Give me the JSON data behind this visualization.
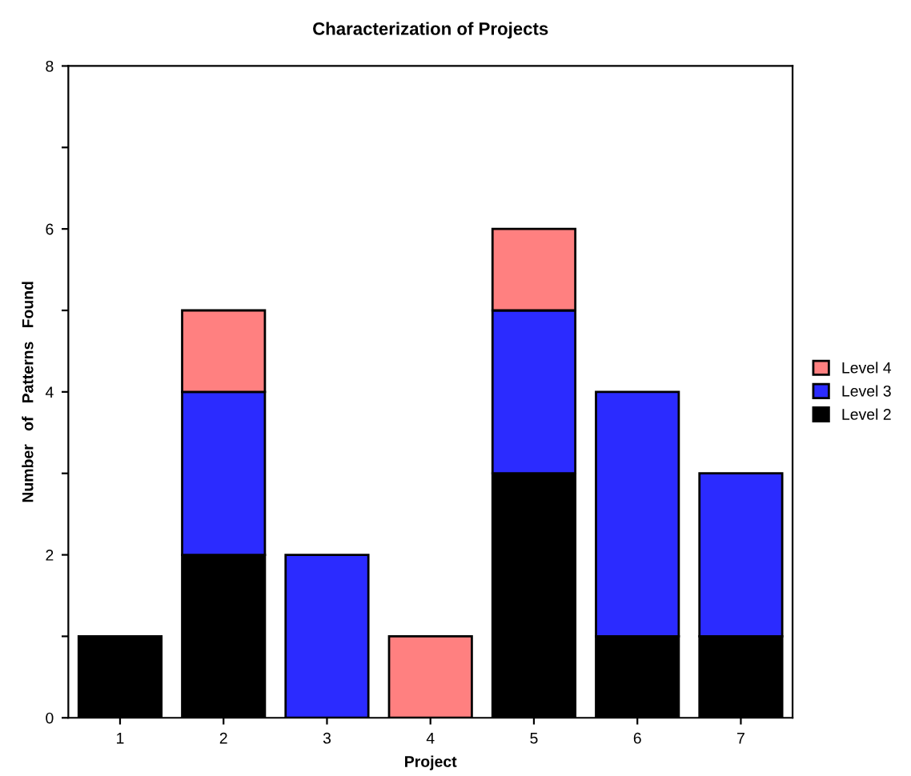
{
  "chart_data": {
    "type": "bar",
    "title": "Characterization of Projects",
    "xlabel": "Project",
    "ylabel": "Number   of   Patterns   Found",
    "categories": [
      "1",
      "2",
      "3",
      "4",
      "5",
      "6",
      "7"
    ],
    "stacked": true,
    "series": [
      {
        "name": "Level 2",
        "color": "#000000",
        "values": [
          1,
          2,
          null,
          null,
          3,
          1,
          1
        ]
      },
      {
        "name": "Level 3",
        "color": "#2b2bff",
        "values": [
          null,
          2,
          2,
          null,
          2,
          3,
          2
        ]
      },
      {
        "name": "Level 4",
        "color": "#ff8080",
        "values": [
          null,
          1,
          null,
          1,
          1,
          null,
          null
        ]
      }
    ],
    "ylim": [
      0,
      8
    ],
    "yticks": [
      0,
      {
        "value": 1,
        "label": null
      },
      2,
      {
        "value": 3,
        "label": null
      },
      4,
      {
        "value": 5,
        "label": null
      },
      6,
      {
        "value": 7,
        "label": null
      },
      8
    ],
    "grid": false,
    "legend": "right"
  }
}
